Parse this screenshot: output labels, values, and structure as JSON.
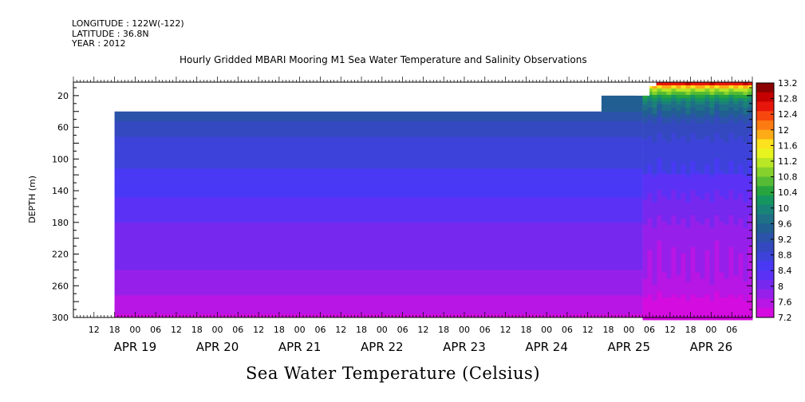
{
  "header": {
    "longitude": "LONGITUDE : 122W(-122)",
    "latitude": "LATITUDE : 36.8N",
    "year": "YEAR : 2012"
  },
  "chart_data": {
    "type": "heatmap",
    "title": "Hourly Gridded MBARI Mooring M1 Sea Water Temperature and Salinity Observations",
    "variable_label": "Sea Water Temperature (Celsius)",
    "xlabel": "",
    "ylabel": "DEPTH (m)",
    "xlim": [
      "2012-04-18 06:00",
      "2012-04-26 12:00"
    ],
    "ylim": [
      300,
      3
    ],
    "y_ticks": [
      20,
      60,
      100,
      140,
      180,
      220,
      260,
      300
    ],
    "x_hour_ticks": [
      "12",
      "18",
      "00",
      "06",
      "12",
      "18",
      "00",
      "06",
      "12",
      "18",
      "00",
      "06",
      "12",
      "18",
      "00",
      "06",
      "12",
      "18",
      "00",
      "06",
      "12",
      "18",
      "00",
      "06",
      "12",
      "18",
      "00",
      "06",
      "12",
      "18",
      "00",
      "06"
    ],
    "x_date_labels": [
      "APR 19",
      "APR 20",
      "APR 21",
      "APR 22",
      "APR 23",
      "APR 24",
      "APR 25",
      "APR 26"
    ],
    "colorbar": {
      "levels": [
        13.2,
        12.8,
        12.4,
        12,
        11.6,
        11.2,
        10.8,
        10.4,
        10,
        9.6,
        9.2,
        8.8,
        8.4,
        8,
        7.6,
        7.2
      ],
      "colors": [
        "#8b0000",
        "#c40000",
        "#e8160a",
        "#f7470e",
        "#fb7a12",
        "#fdab17",
        "#fde21d",
        "#e8f420",
        "#b9e625",
        "#86d12c",
        "#55bb34",
        "#27a43d",
        "#159560",
        "#1a8378",
        "#1f7087",
        "#215f93",
        "#2c53aa",
        "#3449c0",
        "#3d43d9",
        "#4939f5",
        "#5b32f5",
        "#7628ef",
        "#9620ea",
        "#b716e4",
        "#d40cdf"
      ]
    },
    "profile": [
      {
        "depth": 40,
        "temp": 9.3
      },
      {
        "depth": 60,
        "temp": 9.0
      },
      {
        "depth": 80,
        "temp": 8.8
      },
      {
        "depth": 100,
        "temp": 8.7
      },
      {
        "depth": 120,
        "temp": 8.6
      },
      {
        "depth": 140,
        "temp": 8.45
      },
      {
        "depth": 160,
        "temp": 8.3
      },
      {
        "depth": 180,
        "temp": 8.15
      },
      {
        "depth": 200,
        "temp": 8.0
      },
      {
        "depth": 220,
        "temp": 7.95
      },
      {
        "depth": 240,
        "temp": 7.92
      },
      {
        "depth": 260,
        "temp": 7.85
      },
      {
        "depth": 280,
        "temp": 7.6
      },
      {
        "depth": 300,
        "temp": 7.4
      }
    ],
    "surface_band": [
      {
        "depth": 3,
        "temp": 13.0
      },
      {
        "depth": 8,
        "temp": 12.0
      },
      {
        "depth": 12,
        "temp": 11.2
      },
      {
        "depth": 18,
        "temp": 10.6
      },
      {
        "depth": 26,
        "temp": 10.0
      },
      {
        "depth": 36,
        "temp": 9.6
      },
      {
        "depth": 48,
        "temp": 9.3
      }
    ],
    "grid": false,
    "legend": "right"
  }
}
